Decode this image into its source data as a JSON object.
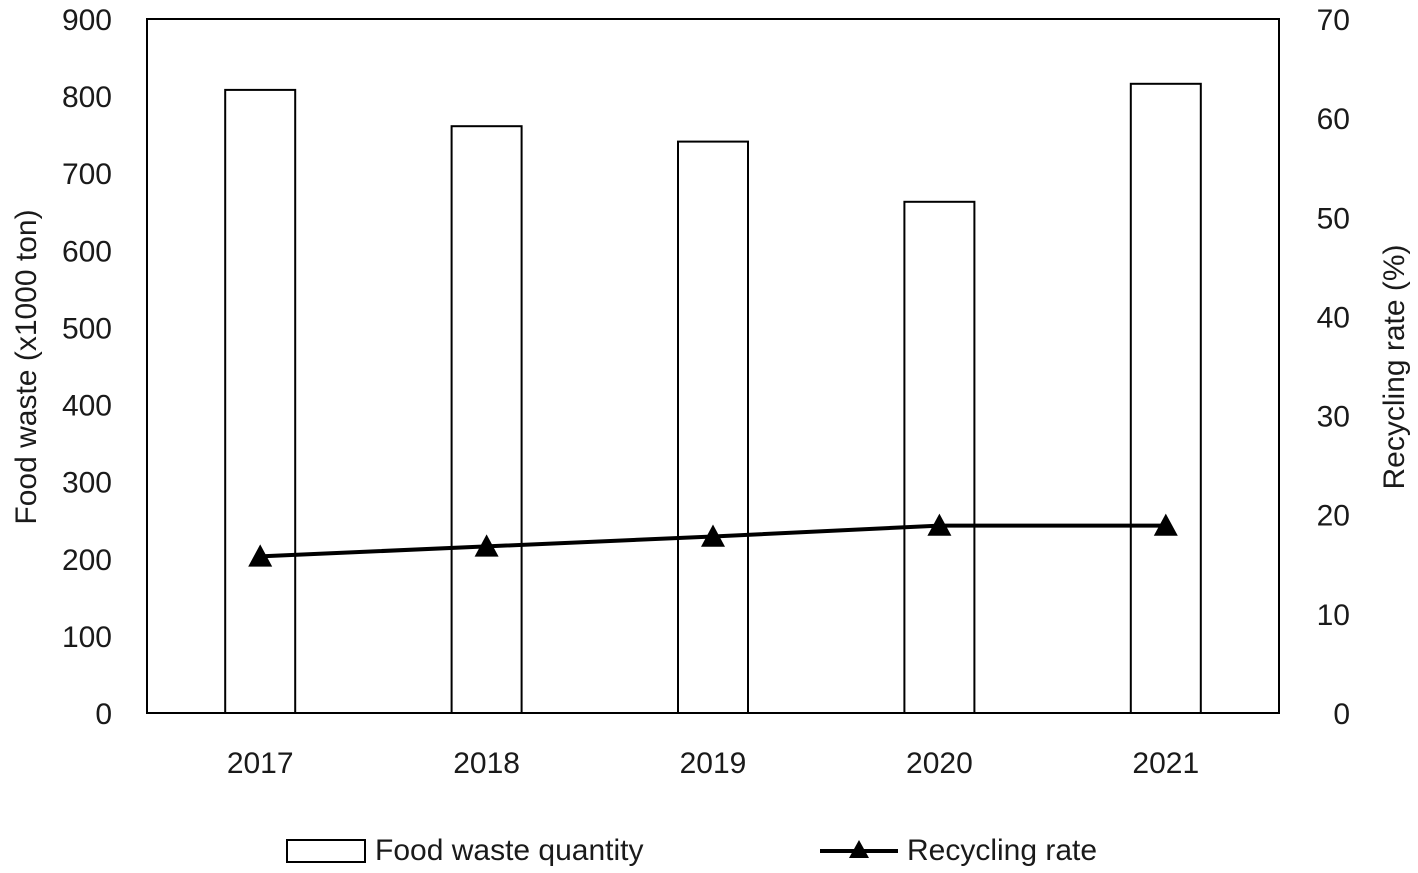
{
  "chart_data": {
    "type": "bar",
    "categories": [
      "2017",
      "2018",
      "2019",
      "2020",
      "2021"
    ],
    "series": [
      {
        "name": "Food waste quantity",
        "type": "bar",
        "axis": "left",
        "values": [
          808,
          761,
          741,
          663,
          816
        ],
        "fill": "#ffffff",
        "stroke": "#000000"
      },
      {
        "name": "Recycling rate",
        "type": "line",
        "marker": "triangle",
        "axis": "right",
        "values": [
          15.8,
          16.8,
          17.8,
          18.9,
          18.9
        ],
        "color": "#000000"
      }
    ],
    "ylabel": "Food waste (x1000 ton)",
    "y2label": "Recycling rate (%)",
    "ylim": [
      0,
      900
    ],
    "y2lim": [
      0,
      70
    ],
    "yticks": [
      "0",
      "100",
      "200",
      "300",
      "400",
      "500",
      "600",
      "700",
      "800",
      "900"
    ],
    "y2ticks": [
      "0",
      "10",
      "20",
      "30",
      "40",
      "50",
      "60",
      "70"
    ],
    "grid": false,
    "legend_position": "bottom"
  }
}
